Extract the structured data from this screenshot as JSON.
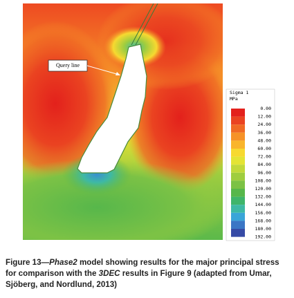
{
  "figure": {
    "annotation": "Query line",
    "legend": {
      "title": "Sigma 1",
      "unit": "MPa",
      "labels": [
        "0.00",
        "12.00",
        "24.00",
        "36.00",
        "48.00",
        "60.00",
        "72.00",
        "84.00",
        "96.00",
        "108.00",
        "120.00",
        "132.00",
        "144.00",
        "156.00",
        "168.00",
        "180.00",
        "192.00"
      ],
      "colors": [
        "#e3211c",
        "#ea4321",
        "#f06a24",
        "#f69228",
        "#f9b52c",
        "#f7d930",
        "#e4e434",
        "#c2d93a",
        "#9fcd3f",
        "#7cc245",
        "#57b74b",
        "#3fb56a",
        "#3eb9a4",
        "#3aa5d8",
        "#3b76c5",
        "#364ba6"
      ]
    },
    "caption": [
      "Figure 13—",
      "Phase2",
      " model showing results for the major principal stress for comparison with the ",
      "3DEC",
      " results in Figure 9 (adapted from Umar, Sjöberg, and Nordlund, 2013)"
    ]
  }
}
